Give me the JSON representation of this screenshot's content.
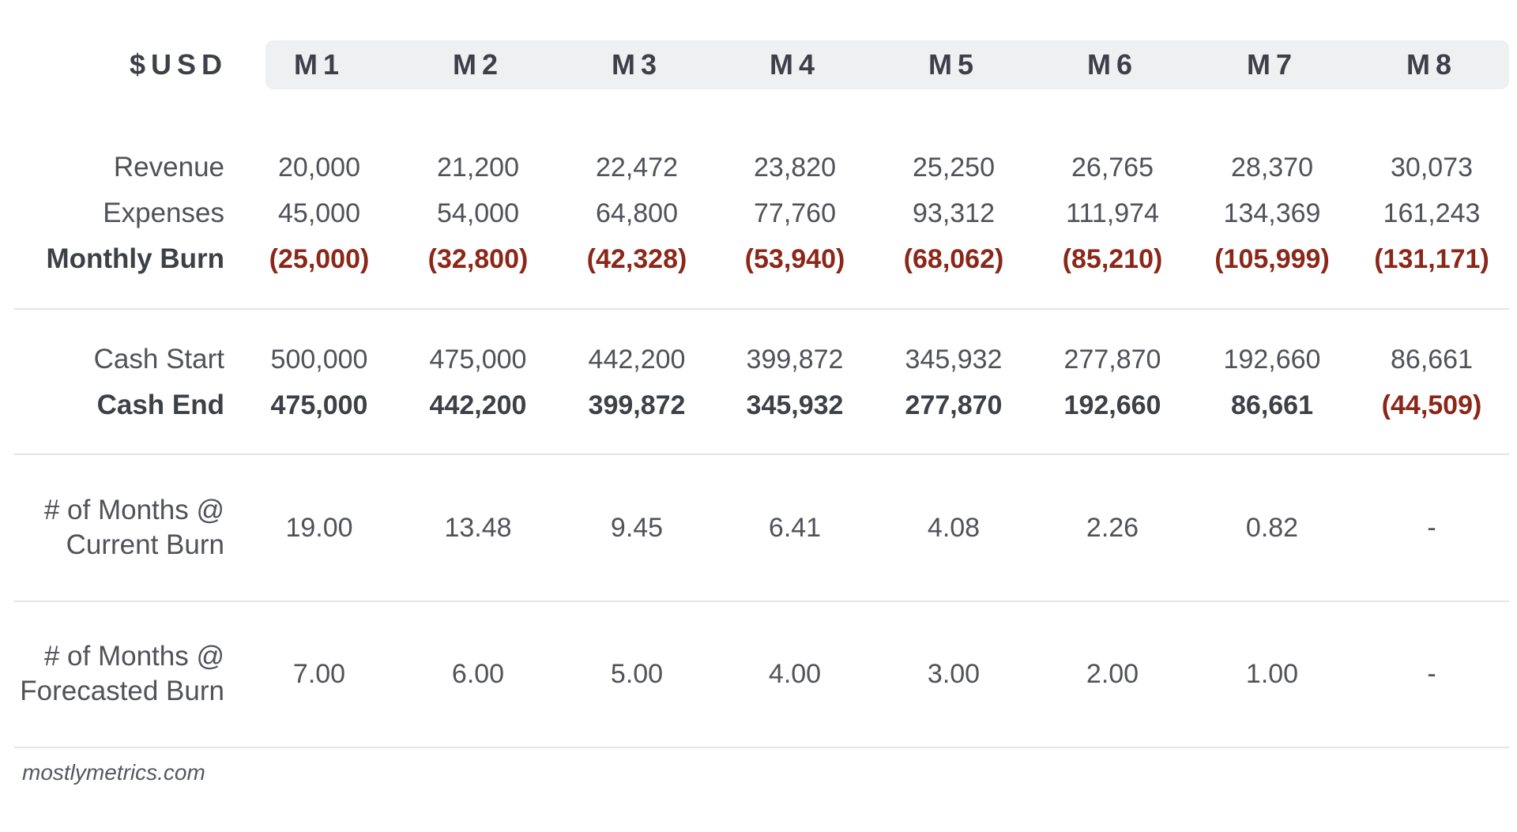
{
  "chart_data": {
    "type": "table",
    "corner_label": "$USD",
    "columns": [
      "M1",
      "M2",
      "M3",
      "M4",
      "M5",
      "M6",
      "M7",
      "M8"
    ],
    "groups": [
      {
        "rows": [
          {
            "label": "Revenue",
            "bold": false,
            "cells": [
              "20,000",
              "21,200",
              "22,472",
              "23,820",
              "25,250",
              "26,765",
              "28,370",
              "30,073"
            ],
            "values": [
              20000,
              21200,
              22472,
              23820,
              25250,
              26765,
              28370,
              30073
            ]
          },
          {
            "label": "Expenses",
            "bold": false,
            "cells": [
              "45,000",
              "54,000",
              "64,800",
              "77,760",
              "93,312",
              "111,974",
              "134,369",
              "161,243"
            ],
            "values": [
              45000,
              54000,
              64800,
              77760,
              93312,
              111974,
              134369,
              161243
            ]
          },
          {
            "label": "Monthly Burn",
            "bold": true,
            "cells": [
              "(25,000)",
              "(32,800)",
              "(42,328)",
              "(53,940)",
              "(68,062)",
              "(85,210)",
              "(105,999)",
              "(131,171)"
            ],
            "values": [
              -25000,
              -32800,
              -42328,
              -53940,
              -68062,
              -85210,
              -105999,
              -131171
            ]
          }
        ]
      },
      {
        "rows": [
          {
            "label": "Cash Start",
            "bold": false,
            "cells": [
              "500,000",
              "475,000",
              "442,200",
              "399,872",
              "345,932",
              "277,870",
              "192,660",
              "86,661"
            ],
            "values": [
              500000,
              475000,
              442200,
              399872,
              345932,
              277870,
              192660,
              86661
            ]
          },
          {
            "label": "Cash End",
            "bold": true,
            "cells": [
              "475,000",
              "442,200",
              "399,872",
              "345,932",
              "277,870",
              "192,660",
              "86,661",
              "(44,509)"
            ],
            "values": [
              475000,
              442200,
              399872,
              345932,
              277870,
              192660,
              86661,
              -44509
            ]
          }
        ]
      },
      {
        "rows": [
          {
            "label_lines": [
              "# of Months @",
              "Current Burn"
            ],
            "bold": false,
            "cells": [
              "19.00",
              "13.48",
              "9.45",
              "6.41",
              "4.08",
              "2.26",
              "0.82",
              "-"
            ],
            "values": [
              19.0,
              13.48,
              9.45,
              6.41,
              4.08,
              2.26,
              0.82,
              null
            ]
          }
        ]
      },
      {
        "rows": [
          {
            "label_lines": [
              "# of Months @",
              "Forecasted Burn"
            ],
            "bold": false,
            "cells": [
              "7.00",
              "6.00",
              "5.00",
              "4.00",
              "3.00",
              "2.00",
              "1.00",
              "-"
            ],
            "values": [
              7.0,
              6.0,
              5.0,
              4.0,
              3.0,
              2.0,
              1.0,
              null
            ]
          }
        ]
      }
    ],
    "negative_color": "#8b2718",
    "header_bg_color": "#eef0f2"
  },
  "source": "mostlymetrics.com"
}
